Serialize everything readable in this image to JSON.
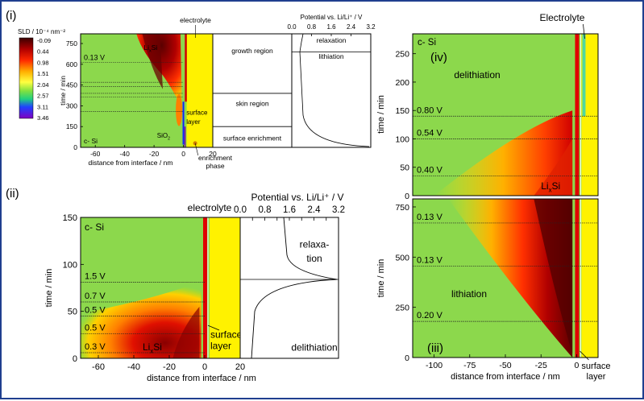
{
  "figure": {
    "panel_labels": [
      "(i)",
      "(ii)",
      "(iii)",
      "(iv)"
    ]
  },
  "colorbar": {
    "title": "SLD / 10⁻⁴ nm⁻²",
    "ticks": [
      "-0.09",
      "0.44",
      "0.98",
      "1.51",
      "2.04",
      "2.57",
      "3.11",
      "3.46"
    ],
    "colors": [
      "#3a0000",
      "#b00000",
      "#ff2a00",
      "#ffb000",
      "#ffff40",
      "#80e040",
      "#20d080",
      "#2040ff",
      "#8000c0"
    ]
  },
  "chart_data": [
    {
      "type": "heatmap",
      "panel": "(i)",
      "xlabel": "distance from interface / nm",
      "ylabel": "time / min",
      "x_ticks": [
        -60,
        -40,
        -20,
        0,
        20
      ],
      "y_ticks": [
        0,
        150,
        300,
        450,
        600,
        750
      ],
      "xlim": [
        -70,
        20
      ],
      "ylim": [
        0,
        820
      ],
      "hlines_min": [
        260,
        365,
        390,
        440,
        470,
        615
      ],
      "voltage_labels": [
        {
          "text": "0.13 V",
          "t": 615
        }
      ],
      "annotations": [
        "electrolyte",
        "LixSi",
        "surface layer",
        "SiO2",
        "enrichment phase",
        "c- Si",
        "growth region",
        "skin region",
        "surface enrichment"
      ],
      "region_labels": [
        "growth region",
        "skin region",
        "surface enrichment"
      ],
      "potential_inset": {
        "xlabel": "Potential vs. Li/Li⁺ / V",
        "x_ticks": [
          0.0,
          0.8,
          1.6,
          2.4,
          3.2
        ],
        "xlim": [
          0,
          3.2
        ],
        "labels": [
          "relaxation",
          "lithiation"
        ]
      }
    },
    {
      "type": "heatmap",
      "panel": "(ii)",
      "xlabel": "distance from interface / nm",
      "ylabel": "time / min",
      "x_ticks": [
        -60,
        -40,
        -20,
        0,
        20
      ],
      "y_ticks": [
        0,
        50,
        100,
        150
      ],
      "xlim": [
        -70,
        20
      ],
      "ylim": [
        0,
        150
      ],
      "voltage_labels": [
        {
          "text": "1.5 V",
          "t": 81
        },
        {
          "text": "0.7 V",
          "t": 60
        },
        {
          "text": "0.5 V",
          "t": 45
        },
        {
          "text": "0.5 V",
          "t": 26
        },
        {
          "text": "0.3 V",
          "t": 6
        }
      ],
      "annotations": [
        "electrolyte",
        "c- Si",
        "LixSi",
        "surface layer"
      ],
      "potential_inset": {
        "xlabel": "Potential vs. Li/Li⁺ / V",
        "x_ticks": [
          0.0,
          0.4,
          0.8,
          1.2,
          1.6,
          2.0,
          2.4,
          2.8,
          3.2
        ],
        "x_tick_labels": [
          "0.0",
          "0.8",
          "1.6",
          "2.4",
          "3.2"
        ],
        "xlim": [
          0,
          3.2
        ],
        "labels": [
          "relaxa-",
          "tion",
          "delithiation"
        ]
      }
    },
    {
      "type": "heatmap",
      "panel": "(iii)",
      "xlabel": "distance from interface / nm",
      "ylabel": "time / min",
      "x_ticks": [
        -100,
        -75,
        -50,
        -25,
        0
      ],
      "y_ticks": [
        0,
        250,
        500,
        750
      ],
      "xlim": [
        -115,
        15
      ],
      "ylim": [
        0,
        790
      ],
      "voltage_labels": [
        {
          "text": "0.13 V",
          "t": 670
        },
        {
          "text": "0.13 V",
          "t": 455
        },
        {
          "text": "0.20 V",
          "t": 180
        }
      ],
      "annotations": [
        "lithiation",
        "surface layer"
      ]
    },
    {
      "type": "heatmap",
      "panel": "(iv)",
      "xlabel": "",
      "ylabel": "time / min",
      "y_ticks": [
        0,
        50,
        100,
        150,
        200,
        250
      ],
      "xlim": [
        -115,
        15
      ],
      "ylim": [
        0,
        285
      ],
      "voltage_labels": [
        {
          "text": "0.80 V",
          "t": 140
        },
        {
          "text": "0.54 V",
          "t": 100
        },
        {
          "text": "0.40 V",
          "t": 35
        }
      ],
      "annotations": [
        "Electrolyte",
        "c- Si",
        "delithiation",
        "LixSi"
      ]
    }
  ]
}
